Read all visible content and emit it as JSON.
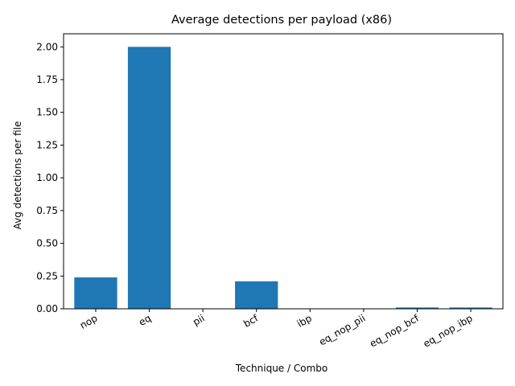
{
  "chart_data": {
    "type": "bar",
    "title": "Average detections per payload (x86)",
    "xlabel": "Technique / Combo",
    "ylabel": "Avg detections per file",
    "categories": [
      "nop",
      "eq",
      "pii",
      "bcf",
      "ibp",
      "eq_nop_pii",
      "eq_nop_bcf",
      "eq_nop_ibp"
    ],
    "values": [
      0.24,
      2.0,
      0.0,
      0.21,
      0.0,
      0.0,
      0.01,
      0.01
    ],
    "ylim": [
      0,
      2.1
    ],
    "yticks": [
      0.0,
      0.25,
      0.5,
      0.75,
      1.0,
      1.25,
      1.5,
      1.75,
      2.0
    ],
    "ytick_labels": [
      "0.00",
      "0.25",
      "0.50",
      "0.75",
      "1.00",
      "1.25",
      "1.50",
      "1.75",
      "2.00"
    ],
    "bar_color": "#1f77b4",
    "grid": false,
    "legend": "none"
  }
}
